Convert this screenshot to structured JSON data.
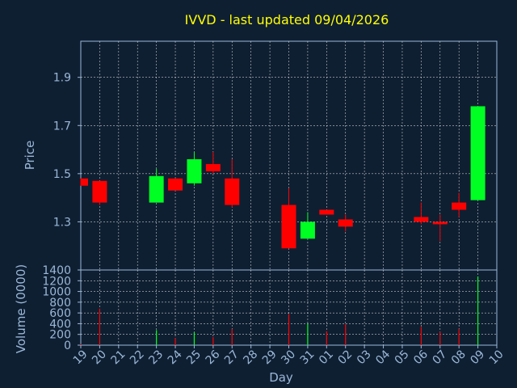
{
  "chart_data": [
    {
      "type": "candlestick",
      "title": "IVVD - last updated 09/04/2026",
      "ylabel": "Price",
      "ylim": [
        1.1,
        2.05
      ],
      "yticks": [
        1.3,
        1.5,
        1.7,
        1.9
      ],
      "grid": true,
      "colors": {
        "up": "#00ff22",
        "down": "#ff0000",
        "title": "#ffff00",
        "text": "#9ab8d8",
        "grid": "#ffffff",
        "background": "#0f1f32"
      },
      "candles": [
        {
          "x": 0,
          "open": 1.48,
          "high": 1.48,
          "low": 1.45,
          "close": 1.45
        },
        {
          "x": 1,
          "open": 1.47,
          "high": 1.47,
          "low": 1.37,
          "close": 1.38
        },
        {
          "x": 4,
          "open": 1.38,
          "high": 1.52,
          "low": 1.38,
          "close": 1.49
        },
        {
          "x": 5,
          "open": 1.48,
          "high": 1.48,
          "low": 1.43,
          "close": 1.43
        },
        {
          "x": 6,
          "open": 1.46,
          "high": 1.59,
          "low": 1.45,
          "close": 1.56
        },
        {
          "x": 7,
          "open": 1.54,
          "high": 1.59,
          "low": 1.5,
          "close": 1.51
        },
        {
          "x": 8,
          "open": 1.48,
          "high": 1.56,
          "low": 1.36,
          "close": 1.37
        },
        {
          "x": 11,
          "open": 1.37,
          "high": 1.44,
          "low": 1.19,
          "close": 1.19
        },
        {
          "x": 12,
          "open": 1.23,
          "high": 1.34,
          "low": 1.23,
          "close": 1.3
        },
        {
          "x": 13,
          "open": 1.35,
          "high": 1.35,
          "low": 1.33,
          "close": 1.33
        },
        {
          "x": 14,
          "open": 1.31,
          "high": 1.33,
          "low": 1.26,
          "close": 1.28
        },
        {
          "x": 18,
          "open": 1.32,
          "high": 1.38,
          "low": 1.29,
          "close": 1.3
        },
        {
          "x": 19,
          "open": 1.3,
          "high": 1.33,
          "low": 1.22,
          "close": 1.29
        },
        {
          "x": 20,
          "open": 1.38,
          "high": 1.42,
          "low": 1.32,
          "close": 1.35
        },
        {
          "x": 21,
          "open": 1.39,
          "high": 1.78,
          "low": 1.39,
          "close": 1.78
        }
      ]
    },
    {
      "type": "bar",
      "ylabel": "Volume (0000)",
      "xlabel": "Day",
      "ylim": [
        0,
        1400
      ],
      "yticks": [
        "0",
        "200",
        "400",
        "600",
        "800",
        "1000",
        "1200",
        "1400"
      ],
      "categories": [
        "19",
        "20",
        "21",
        "22",
        "23",
        "24",
        "25",
        "26",
        "27",
        "28",
        "29",
        "30",
        "31",
        "01",
        "02",
        "03",
        "04",
        "05",
        "06",
        "07",
        "08",
        "09",
        "10"
      ],
      "volumes": [
        {
          "x": 0,
          "value": 20,
          "dir": "down"
        },
        {
          "x": 1,
          "value": 680,
          "dir": "down"
        },
        {
          "x": 4,
          "value": 280,
          "dir": "up"
        },
        {
          "x": 5,
          "value": 130,
          "dir": "down"
        },
        {
          "x": 6,
          "value": 240,
          "dir": "up"
        },
        {
          "x": 7,
          "value": 150,
          "dir": "down"
        },
        {
          "x": 8,
          "value": 300,
          "dir": "down"
        },
        {
          "x": 11,
          "value": 580,
          "dir": "down"
        },
        {
          "x": 12,
          "value": 400,
          "dir": "up"
        },
        {
          "x": 13,
          "value": 260,
          "dir": "down"
        },
        {
          "x": 14,
          "value": 390,
          "dir": "down"
        },
        {
          "x": 18,
          "value": 340,
          "dir": "down"
        },
        {
          "x": 19,
          "value": 250,
          "dir": "down"
        },
        {
          "x": 20,
          "value": 300,
          "dir": "down"
        },
        {
          "x": 21,
          "value": 1280,
          "dir": "up"
        }
      ]
    }
  ]
}
